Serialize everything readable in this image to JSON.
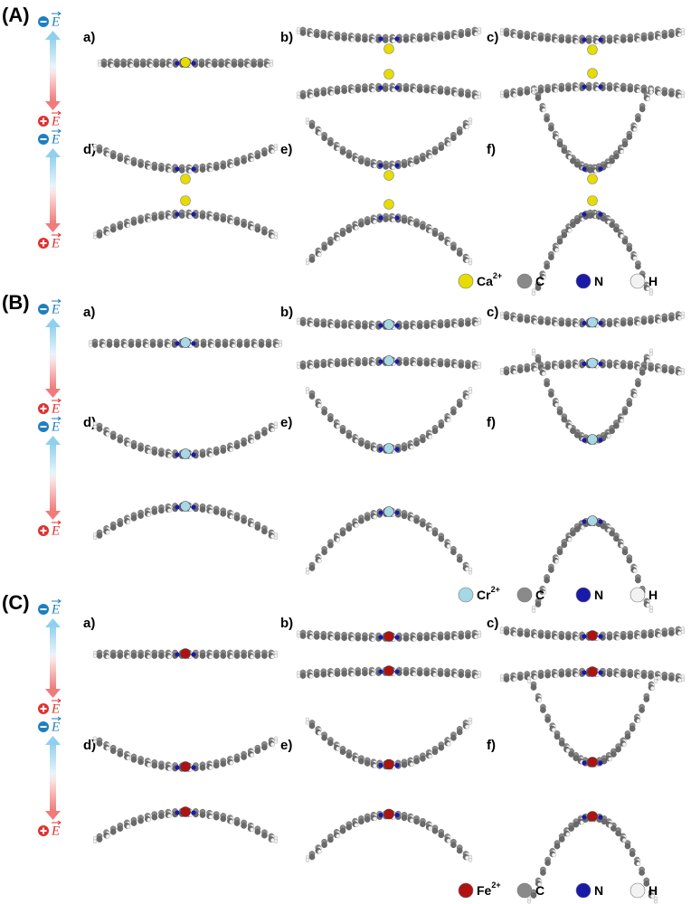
{
  "field_symbol": "E",
  "panels": [
    {
      "label": "(A)",
      "subpanels": [
        "a)",
        "b)",
        "c)",
        "d)",
        "e)",
        "f)"
      ],
      "legend": [
        {
          "label": "Ca",
          "superscript": "2+",
          "color": "#e6dc00"
        },
        {
          "label": "C",
          "color": "#8a8a8a"
        },
        {
          "label": "N",
          "color": "#1a1aa8"
        },
        {
          "label": "H",
          "color": "#f2f2f2"
        }
      ]
    },
    {
      "label": "(B)",
      "subpanels": [
        "a)",
        "b)",
        "c)",
        "d)",
        "e)",
        "f)"
      ],
      "legend": [
        {
          "label": "Cr",
          "superscript": "2+",
          "color": "#a6d8e6"
        },
        {
          "label": "C",
          "color": "#8a8a8a"
        },
        {
          "label": "N",
          "color": "#1a1aa8"
        },
        {
          "label": "H",
          "color": "#f2f2f2"
        }
      ]
    },
    {
      "label": "(C)",
      "subpanels": [
        "a)",
        "b)",
        "c)",
        "d)",
        "e)",
        "f)"
      ],
      "legend": [
        {
          "label": "Fe",
          "superscript": "2+",
          "color": "#b01212"
        },
        {
          "label": "C",
          "color": "#8a8a8a"
        },
        {
          "label": "N",
          "color": "#1a1aa8"
        },
        {
          "label": "H",
          "color": "#f2f2f2"
        }
      ]
    }
  ]
}
